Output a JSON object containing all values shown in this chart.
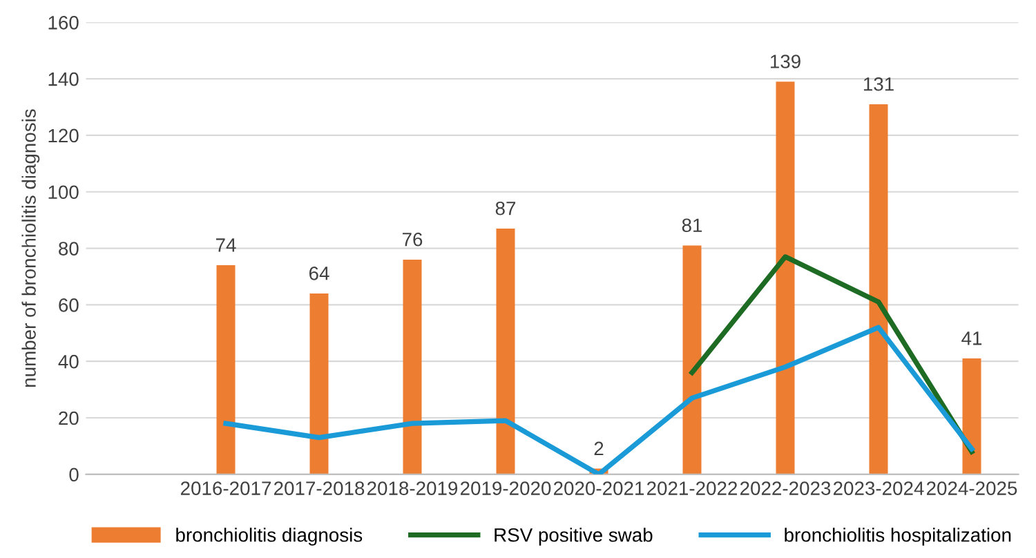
{
  "chart_data": {
    "type": "bar",
    "ylabel": "number of bronchiolitis diagnosis",
    "categories": [
      null,
      "2016-2017",
      "2017-2018",
      "2018-2019",
      "2019-2020",
      "2020-2021",
      "2021-2022",
      "2022-2023",
      "2023-2024",
      "2024-2025"
    ],
    "series": [
      {
        "name": "bronchiolitis diagnosis",
        "color": "#ed7d31",
        "values": [
          null,
          74,
          64,
          76,
          87,
          2,
          81,
          139,
          131,
          41
        ],
        "value_labels": [
          null,
          "74",
          "64",
          "76",
          "87",
          "2",
          "81",
          "139",
          "131",
          "41"
        ]
      },
      {
        "name": "RSV positive swab",
        "type": "line",
        "color": "#1e6b24",
        "values": [
          null,
          null,
          null,
          null,
          null,
          null,
          36,
          77,
          61,
          8
        ]
      },
      {
        "name": "bronchiolitis hospitalization",
        "type": "line",
        "color": "#1a9bd7",
        "values": [
          null,
          18,
          13,
          18,
          19,
          0,
          27,
          38,
          52,
          9
        ]
      }
    ],
    "ylim": [
      0,
      160
    ],
    "yticks": [
      0,
      20,
      40,
      60,
      80,
      100,
      120,
      140,
      160
    ],
    "grid": "y",
    "legend": "bottom",
    "marker": "none"
  }
}
